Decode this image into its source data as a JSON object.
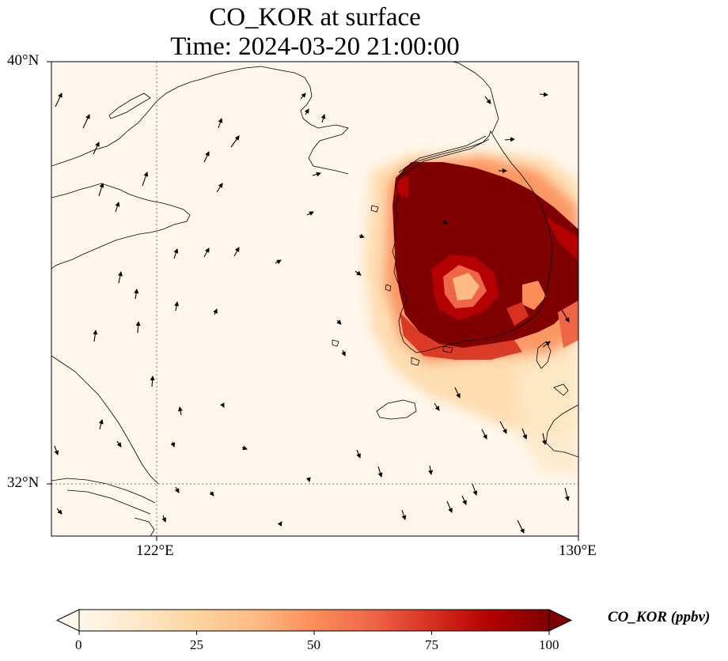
{
  "title": {
    "line1": "CO_KOR at surface",
    "line2": "Time: 2024-03-20 21:00:00"
  },
  "map": {
    "projection": "Plate Carree (lon/lat)",
    "lon_range": [
      118,
      130.2
    ],
    "lat_range": [
      30.6,
      40
    ],
    "variable": "CO_KOR",
    "units": "ppbv",
    "gridlines": {
      "style": "dotted",
      "lon": [
        122,
        130
      ],
      "lat": [
        32,
        40
      ]
    },
    "x_ticks": [
      {
        "value": 122,
        "label": "122°E"
      },
      {
        "value": 130,
        "label": "130°E"
      }
    ],
    "y_ticks": [
      {
        "value": 40,
        "label": "40°N"
      },
      {
        "value": 32,
        "label": "32°N"
      }
    ],
    "features": [
      "coastlines",
      "wind vectors"
    ],
    "high_concentration_region": "Korean Peninsula (saturated >100 ppbv over most of South Korea)"
  },
  "colorbar": {
    "label": "CO_KOR (ppbv)",
    "colormap": "OrRd",
    "colors": [
      "#fff7ec",
      "#fee8c8",
      "#fdd49e",
      "#fdbb84",
      "#fc8d59",
      "#ef6548",
      "#d7301f",
      "#b30000",
      "#7f0000"
    ],
    "min": 0,
    "max": 100,
    "extend": "both",
    "ticks": [
      0,
      25,
      50,
      75,
      100
    ],
    "tick_labels": [
      "0",
      "25",
      "50",
      "75",
      "100"
    ]
  }
}
